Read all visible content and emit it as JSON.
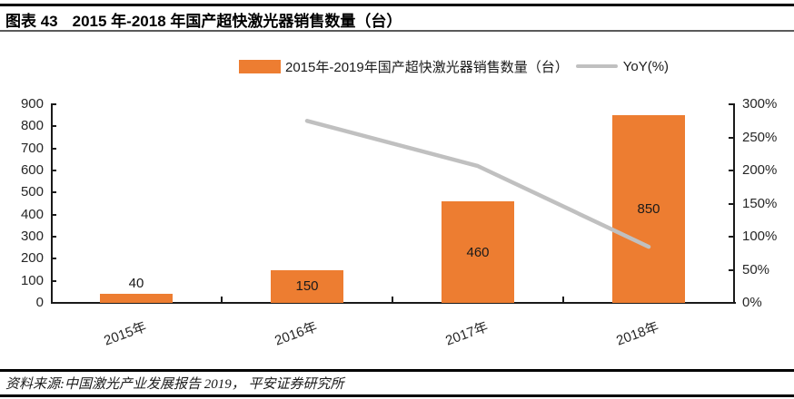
{
  "header": {
    "figure_label": "图表 43",
    "title": "2015 年-2018 年国产超快激光器销售数量（台）"
  },
  "legend": {
    "items": [
      {
        "label": "2015年-2019年国产超快激光器销售数量（台）",
        "marker": "bar-swatch",
        "color": "#ED7D31"
      },
      {
        "label": "YoY(%)",
        "marker": "line-swatch",
        "color": "#C0C0C0"
      }
    ]
  },
  "chart_data": {
    "type": "bar",
    "categories": [
      "2015年",
      "2016年",
      "2017年",
      "2018年"
    ],
    "series": [
      {
        "name": "2015年-2019年国产超快激光器销售数量（台）",
        "type": "bar",
        "yaxis": "left",
        "color": "#ED7D31",
        "values": [
          40,
          150,
          460,
          850
        ],
        "data_labels": [
          "40",
          "150",
          "460",
          "850"
        ]
      },
      {
        "name": "YoY(%)",
        "type": "line",
        "yaxis": "right",
        "color": "#C0C0C0",
        "values": [
          null,
          275,
          206.7,
          84.8
        ]
      }
    ],
    "left_axis": {
      "min": 0,
      "max": 900,
      "step": 100,
      "tick_labels": [
        "900",
        "800",
        "700",
        "600",
        "500",
        "400",
        "300",
        "200",
        "100",
        "0"
      ]
    },
    "right_axis": {
      "min": 0,
      "max": 300,
      "step": 50,
      "tick_labels": [
        "300%",
        "250%",
        "200%",
        "150%",
        "100%",
        "50%",
        "0%"
      ]
    },
    "grid": false,
    "legend_position": "top"
  },
  "source": {
    "text": "资料来源:中国激光产业发展报告 2019， 平安证券研究所"
  }
}
